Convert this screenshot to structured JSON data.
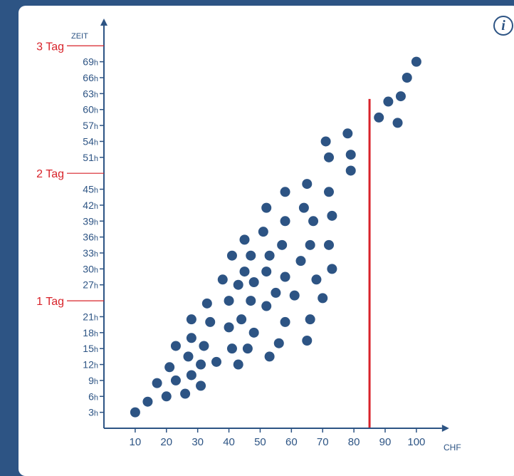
{
  "info": {
    "icon": "info-icon",
    "label": "i"
  },
  "colors": {
    "axis": "#2d5484",
    "points": "#2d5484",
    "threshold": "#d8232a",
    "day_label": "#d8232a",
    "background": "#2d5484"
  },
  "chart_data": {
    "type": "scatter",
    "ylabel": "ZEIT",
    "xlabel": "CHF",
    "xlim": [
      0,
      105
    ],
    "ylim": [
      0,
      75
    ],
    "x_ticks": [
      10,
      20,
      30,
      40,
      50,
      60,
      70,
      80,
      90,
      100
    ],
    "x_tick_labels": [
      "10",
      "20",
      "30",
      "40",
      "50",
      "60",
      "70",
      "80",
      "90",
      "100"
    ],
    "y_ticks": [
      3,
      6,
      9,
      12,
      15,
      18,
      21,
      27,
      30,
      33,
      36,
      39,
      42,
      45,
      51,
      54,
      57,
      60,
      63,
      66,
      69
    ],
    "y_tick_unit": "h",
    "day_markers": [
      {
        "value": 24,
        "label": "1 Tag"
      },
      {
        "value": 48,
        "label": "2 Tag"
      },
      {
        "value": 72,
        "label": "3 Tag"
      }
    ],
    "threshold_x": 85,
    "threshold_y_top": 62,
    "points": [
      [
        10,
        3
      ],
      [
        14,
        5
      ],
      [
        17,
        8.5
      ],
      [
        20,
        6
      ],
      [
        21,
        11.5
      ],
      [
        23,
        9
      ],
      [
        23,
        15.5
      ],
      [
        26,
        6.5
      ],
      [
        27,
        13.5
      ],
      [
        28,
        10
      ],
      [
        28,
        17
      ],
      [
        28,
        20.5
      ],
      [
        31,
        12
      ],
      [
        31,
        8
      ],
      [
        32,
        15.5
      ],
      [
        33,
        23.5
      ],
      [
        34,
        20
      ],
      [
        36,
        12.5
      ],
      [
        38,
        28
      ],
      [
        40,
        24
      ],
      [
        40,
        19
      ],
      [
        41,
        15
      ],
      [
        41,
        32.5
      ],
      [
        43,
        27
      ],
      [
        43,
        12
      ],
      [
        44,
        20.5
      ],
      [
        45,
        29.5
      ],
      [
        45,
        35.5
      ],
      [
        46,
        15
      ],
      [
        47,
        24
      ],
      [
        47,
        32.5
      ],
      [
        48,
        18
      ],
      [
        48,
        27.5
      ],
      [
        51,
        37
      ],
      [
        52,
        29.5
      ],
      [
        52,
        23
      ],
      [
        52,
        41.5
      ],
      [
        53,
        32.5
      ],
      [
        53,
        13.5
      ],
      [
        55,
        25.5
      ],
      [
        56,
        16
      ],
      [
        57,
        34.5
      ],
      [
        58,
        28.5
      ],
      [
        58,
        20
      ],
      [
        58,
        39
      ],
      [
        58,
        44.5
      ],
      [
        61,
        25
      ],
      [
        63,
        31.5
      ],
      [
        64,
        41.5
      ],
      [
        65,
        16.5
      ],
      [
        65,
        46
      ],
      [
        66,
        20.5
      ],
      [
        66,
        34.5
      ],
      [
        67,
        39
      ],
      [
        68,
        28
      ],
      [
        70,
        24.5
      ],
      [
        71,
        54
      ],
      [
        72,
        34.5
      ],
      [
        72,
        44.5
      ],
      [
        72,
        51
      ],
      [
        73,
        30
      ],
      [
        73,
        40
      ],
      [
        78,
        55.5
      ],
      [
        79,
        51.5
      ],
      [
        79,
        48.5
      ],
      [
        88,
        58.5
      ],
      [
        91,
        61.5
      ],
      [
        94,
        57.5
      ],
      [
        95,
        62.5
      ],
      [
        97,
        66
      ],
      [
        100,
        69
      ]
    ]
  }
}
